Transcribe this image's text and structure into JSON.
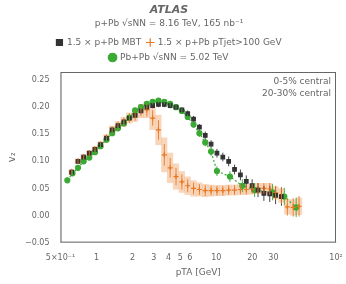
{
  "chart_data": {
    "type": "scatter",
    "title": "ATLAS",
    "subtitle": "p+Pb √sNN = 8.16 TeV, 165 nb⁻¹",
    "xlabel": "pTA [GeV]",
    "ylabel": "v₂",
    "annotations": [
      "0-5% central",
      "20-30% central"
    ],
    "log": "x",
    "grid": false,
    "legend": "top",
    "xlim": [
      0.5,
      100
    ],
    "ylim": [
      -0.05,
      0.265
    ],
    "xticks": [
      {
        "value": 0.5,
        "label": "5×10⁻¹"
      },
      1,
      2,
      3,
      4,
      5,
      6,
      10,
      20,
      30,
      {
        "value": 100,
        "label": "10²"
      }
    ],
    "yticks": [
      {
        "value": -0.05,
        "label": "−0.05"
      },
      {
        "value": 0,
        "label": "0.00"
      },
      0.05,
      {
        "value": 0.1,
        "label": "0.10"
      },
      0.15,
      {
        "value": 0.2,
        "label": "0.20"
      },
      0.25
    ],
    "series": [
      {
        "name": "1.5 × p+Pb MBT",
        "color": "#333333",
        "marker": "square",
        "line_style": "none",
        "x": [
          0.62,
          0.7,
          0.78,
          0.87,
          0.97,
          1.08,
          1.21,
          1.35,
          1.51,
          1.69,
          1.88,
          2.1,
          2.35,
          2.63,
          2.94,
          3.29,
          3.68,
          4.12,
          4.61,
          5.16,
          5.77,
          6.46,
          7.23,
          8.09,
          9.05,
          10.13,
          11.34,
          12.69,
          14.21,
          15.91,
          17.81,
          19.93,
          22.32,
          24.98,
          27.96,
          31.29,
          35.02
        ],
        "values": [
          0.08,
          0.1,
          0.108,
          0.115,
          0.122,
          0.131,
          0.143,
          0.158,
          0.166,
          0.173,
          0.18,
          0.185,
          0.193,
          0.2,
          0.203,
          0.205,
          0.205,
          0.203,
          0.2,
          0.195,
          0.188,
          0.178,
          0.163,
          0.148,
          0.132,
          0.115,
          0.108,
          0.1,
          0.085,
          0.075,
          0.063,
          0.055,
          0.047,
          0.041,
          0.04,
          0.037,
          0.035
        ],
        "yerr_lo": [
          0.006,
          0.005,
          0.005,
          0.005,
          0.005,
          0.005,
          0.005,
          0.005,
          0.005,
          0.005,
          0.005,
          0.005,
          0.005,
          0.005,
          0.005,
          0.005,
          0.005,
          0.005,
          0.005,
          0.005,
          0.006,
          0.006,
          0.006,
          0.007,
          0.007,
          0.008,
          0.008,
          0.009,
          0.009,
          0.01,
          0.011,
          0.012,
          0.013,
          0.014,
          0.015,
          0.016,
          0.017
        ],
        "yerr_hi": [
          0.006,
          0.005,
          0.005,
          0.005,
          0.005,
          0.005,
          0.005,
          0.005,
          0.005,
          0.005,
          0.005,
          0.005,
          0.005,
          0.005,
          0.005,
          0.005,
          0.005,
          0.005,
          0.005,
          0.005,
          0.006,
          0.006,
          0.006,
          0.007,
          0.007,
          0.008,
          0.008,
          0.009,
          0.009,
          0.01,
          0.011,
          0.012,
          0.013,
          0.014,
          0.015,
          0.016,
          0.017
        ]
      },
      {
        "name": "1.5 × p+Pb pTjet>100 GeV",
        "color": "#E87722",
        "marker": "cross",
        "line_style": "none",
        "x": [
          0.62,
          0.7,
          0.78,
          0.87,
          0.97,
          1.08,
          1.21,
          1.35,
          1.51,
          1.69,
          1.88,
          2.1,
          2.35,
          2.63,
          2.94,
          3.29,
          3.68,
          4.12,
          4.61,
          5.16,
          5.77,
          6.46,
          7.23,
          8.09,
          9.05,
          10.13,
          11.34,
          12.69,
          14.21,
          15.91,
          17.81,
          19.93,
          22.32,
          24.98,
          27.96,
          31.29,
          35.02,
          39.21,
          43.9,
          49.13
        ],
        "values": [
          0.08,
          0.1,
          0.108,
          0.115,
          0.122,
          0.131,
          0.143,
          0.158,
          0.166,
          0.173,
          0.18,
          0.185,
          0.193,
          0.195,
          0.18,
          0.158,
          0.112,
          0.088,
          0.072,
          0.062,
          0.055,
          0.05,
          0.048,
          0.046,
          0.046,
          0.046,
          0.046,
          0.047,
          0.047,
          0.048,
          0.048,
          0.049,
          0.05,
          0.05,
          0.049,
          0.042,
          0.037,
          0.016,
          0.015,
          0.017
        ],
        "yerr_lo": [
          0.006,
          0.005,
          0.005,
          0.006,
          0.006,
          0.006,
          0.007,
          0.007,
          0.008,
          0.008,
          0.009,
          0.01,
          0.01,
          0.012,
          0.014,
          0.018,
          0.02,
          0.018,
          0.016,
          0.014,
          0.012,
          0.011,
          0.01,
          0.01,
          0.009,
          0.009,
          0.009,
          0.009,
          0.009,
          0.009,
          0.009,
          0.009,
          0.01,
          0.01,
          0.011,
          0.013,
          0.015,
          0.016,
          0.017,
          0.019
        ],
        "yerr_hi": [
          0.006,
          0.005,
          0.005,
          0.006,
          0.006,
          0.006,
          0.007,
          0.007,
          0.008,
          0.008,
          0.009,
          0.01,
          0.01,
          0.012,
          0.014,
          0.018,
          0.02,
          0.018,
          0.016,
          0.014,
          0.012,
          0.011,
          0.01,
          0.01,
          0.009,
          0.009,
          0.009,
          0.009,
          0.009,
          0.009,
          0.009,
          0.009,
          0.01,
          0.01,
          0.011,
          0.013,
          0.015,
          0.016,
          0.017,
          0.019
        ],
        "syst_lo": [
          0.005,
          0.005,
          0.005,
          0.005,
          0.006,
          0.006,
          0.007,
          0.008,
          0.008,
          0.009,
          0.01,
          0.012,
          0.013,
          0.015,
          0.022,
          0.028,
          0.032,
          0.028,
          0.024,
          0.02,
          0.017,
          0.015,
          0.013,
          0.012,
          0.011,
          0.01,
          0.01,
          0.01,
          0.01,
          0.01,
          0.01,
          0.01,
          0.01,
          0.01,
          0.011,
          0.012,
          0.013,
          0.014,
          0.015,
          0.016
        ],
        "syst_hi": [
          0.005,
          0.005,
          0.005,
          0.005,
          0.006,
          0.006,
          0.007,
          0.008,
          0.008,
          0.009,
          0.01,
          0.012,
          0.013,
          0.015,
          0.022,
          0.028,
          0.032,
          0.028,
          0.024,
          0.02,
          0.017,
          0.015,
          0.013,
          0.012,
          0.011,
          0.01,
          0.01,
          0.01,
          0.01,
          0.01,
          0.01,
          0.01,
          0.01,
          0.01,
          0.011,
          0.012,
          0.013,
          0.014,
          0.015,
          0.016
        ]
      },
      {
        "name": "Pb+Pb √sNN = 5.02 TeV",
        "color": "#3aaa35",
        "marker": "circle",
        "line_style": "dotted",
        "x": [
          0.57,
          0.63,
          0.7,
          0.78,
          0.87,
          0.97,
          1.08,
          1.21,
          1.35,
          1.51,
          1.69,
          1.88,
          2.1,
          2.35,
          2.63,
          2.94,
          3.29,
          3.68,
          4.12,
          4.61,
          5.16,
          5.77,
          6.46,
          7.23,
          8.09,
          9.05,
          10.13,
          13.0,
          16.5,
          20.9,
          29.5,
          37.0,
          46.5
        ],
        "values": [
          0.065,
          0.078,
          0.088,
          0.1,
          0.107,
          0.117,
          0.128,
          0.14,
          0.152,
          0.161,
          0.17,
          0.181,
          0.194,
          0.2,
          0.206,
          0.21,
          0.212,
          0.21,
          0.206,
          0.2,
          0.193,
          0.182,
          0.168,
          0.152,
          0.135,
          0.118,
          0.082,
          0.072,
          0.055,
          0.047,
          0.043,
          0.035,
          0.015
        ],
        "yerr_lo": [
          0.005,
          0.005,
          0.005,
          0.005,
          0.005,
          0.005,
          0.005,
          0.005,
          0.005,
          0.005,
          0.005,
          0.005,
          0.005,
          0.005,
          0.005,
          0.005,
          0.005,
          0.005,
          0.005,
          0.005,
          0.005,
          0.005,
          0.006,
          0.007,
          0.007,
          0.008,
          0.009,
          0.01,
          0.012,
          0.013,
          0.015,
          0.016,
          0.018
        ],
        "yerr_hi": [
          0.005,
          0.005,
          0.005,
          0.005,
          0.005,
          0.005,
          0.005,
          0.005,
          0.005,
          0.005,
          0.005,
          0.005,
          0.005,
          0.005,
          0.005,
          0.005,
          0.005,
          0.005,
          0.005,
          0.005,
          0.005,
          0.005,
          0.006,
          0.007,
          0.007,
          0.008,
          0.009,
          0.01,
          0.012,
          0.013,
          0.015,
          0.016,
          0.018
        ]
      }
    ]
  }
}
